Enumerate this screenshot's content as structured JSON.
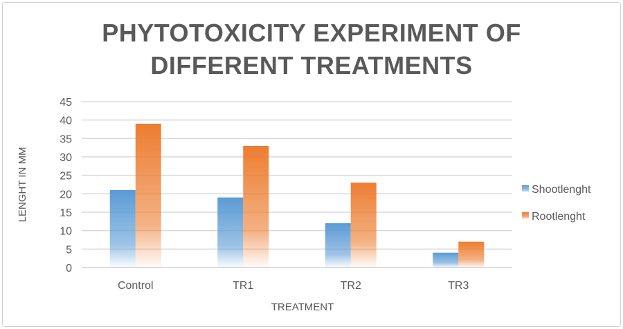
{
  "chart_data": {
    "type": "bar",
    "title_lines": [
      "PHYTOTOXICITY EXPERIMENT OF",
      "DIFFERENT TREATMENTS"
    ],
    "xlabel": "TREATMENT",
    "ylabel": "LENGHT IN MM",
    "categories": [
      "Control",
      "TR1",
      "TR2",
      "TR3"
    ],
    "series": [
      {
        "name": "Shootlenght",
        "values": [
          21,
          19,
          12,
          4
        ],
        "color": "#5b9bd5"
      },
      {
        "name": "Rootlenght",
        "values": [
          39,
          33,
          23,
          7
        ],
        "color": "#ed7d31"
      }
    ],
    "ylim": [
      0,
      45
    ],
    "yticks": [
      "0",
      "5",
      "10",
      "15",
      "20",
      "25",
      "30",
      "35",
      "40",
      "45"
    ],
    "grid": true,
    "legend": "right"
  }
}
